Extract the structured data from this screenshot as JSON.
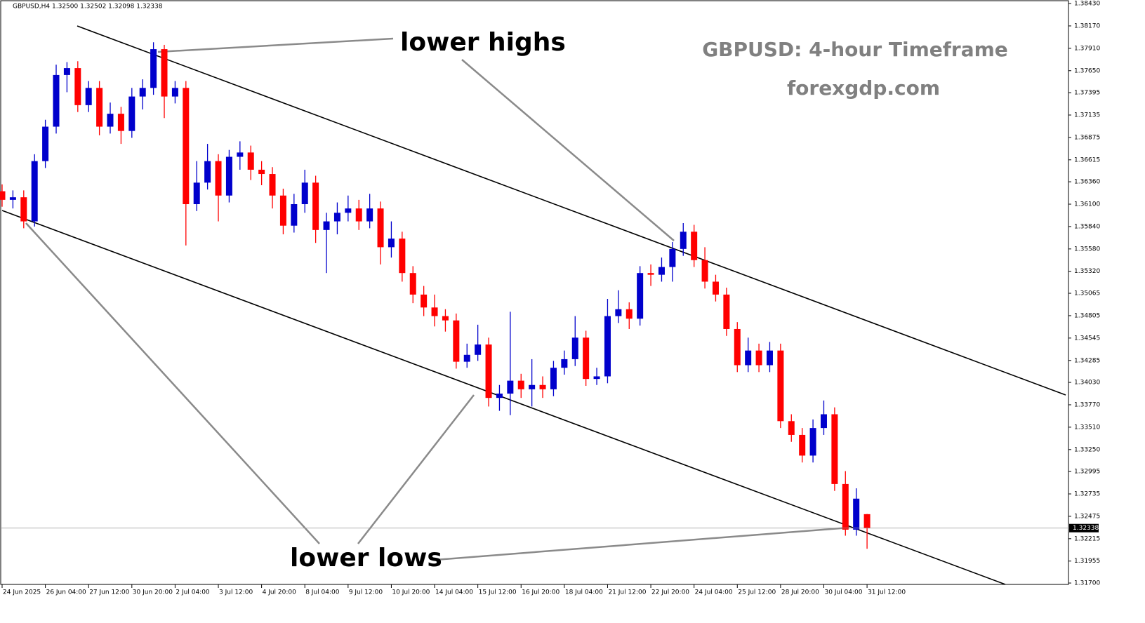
{
  "chart_data": {
    "type": "candlestick",
    "symbol_info": "GBPUSD,H4  1.32500 1.32502 1.32098 1.32338",
    "title": "GBPUSD: 4-hour Timeframe",
    "subtitle": "forexgdp.com",
    "annotations": [
      "lower highs",
      "lower lows"
    ],
    "up_color": "#0000cc",
    "down_color": "#ff0000",
    "x": [
      0,
      1,
      2,
      3,
      4,
      5,
      6,
      7,
      8,
      9,
      10,
      11,
      12,
      13,
      14,
      15,
      16,
      17,
      18,
      19,
      20,
      21,
      22,
      23,
      24,
      25,
      26,
      27,
      28,
      29,
      30,
      31,
      32,
      33,
      34,
      35,
      36,
      37,
      38,
      39,
      40,
      41,
      42,
      43,
      44,
      45,
      46,
      47,
      48,
      49,
      50,
      51,
      52,
      53,
      54,
      55,
      56,
      57,
      58,
      59,
      60,
      61,
      62,
      63,
      64,
      65,
      66,
      67,
      68,
      69,
      70,
      71,
      72,
      73,
      74,
      75,
      76,
      77,
      78,
      79,
      80
    ],
    "open": [
      1.3625,
      1.3615,
      1.3618,
      1.359,
      1.366,
      1.37,
      1.376,
      1.3768,
      1.3725,
      1.3745,
      1.37,
      1.3715,
      1.3695,
      1.3735,
      1.3745,
      1.379,
      1.3735,
      1.3745,
      1.361,
      1.3635,
      1.366,
      1.362,
      1.3665,
      1.367,
      1.365,
      1.3645,
      1.362,
      1.3585,
      1.361,
      1.3635,
      1.358,
      1.359,
      1.36,
      1.3605,
      1.359,
      1.3605,
      1.356,
      1.357,
      1.353,
      1.3505,
      1.349,
      1.348,
      1.3475,
      1.3427,
      1.3435,
      1.3447,
      1.3385,
      1.339,
      1.3405,
      1.3395,
      1.34,
      1.3395,
      1.342,
      1.343,
      1.3455,
      1.3407,
      1.341,
      1.348,
      1.3488,
      1.3477,
      1.353,
      1.3528,
      1.3537,
      1.3558,
      1.3578,
      1.3545,
      1.352,
      1.3505,
      1.3465,
      1.3423,
      1.344,
      1.3423,
      1.344,
      1.3358,
      1.3342,
      1.3318,
      1.335,
      1.3366,
      1.3285,
      1.3232,
      1.325
    ],
    "high": [
      1.3633,
      1.3626,
      1.3626,
      1.3668,
      1.3708,
      1.3772,
      1.3775,
      1.3776,
      1.3753,
      1.3753,
      1.3728,
      1.3723,
      1.3745,
      1.3755,
      1.3798,
      1.3795,
      1.3753,
      1.3753,
      1.366,
      1.368,
      1.3668,
      1.3673,
      1.3683,
      1.3678,
      1.366,
      1.3653,
      1.3628,
      1.3622,
      1.365,
      1.3643,
      1.36,
      1.3612,
      1.362,
      1.3615,
      1.3622,
      1.3613,
      1.359,
      1.3578,
      1.3538,
      1.3515,
      1.3505,
      1.3488,
      1.3483,
      1.3448,
      1.347,
      1.3455,
      1.34,
      1.3485,
      1.3413,
      1.343,
      1.341,
      1.3428,
      1.344,
      1.348,
      1.3463,
      1.342,
      1.35,
      1.351,
      1.3496,
      1.3538,
      1.354,
      1.3548,
      1.3566,
      1.3588,
      1.3586,
      1.356,
      1.3528,
      1.3513,
      1.3473,
      1.3455,
      1.3448,
      1.345,
      1.3448,
      1.3366,
      1.335,
      1.336,
      1.3382,
      1.3374,
      1.33,
      1.328,
      1.32502
    ],
    "low": [
      1.3607,
      1.3605,
      1.3582,
      1.3584,
      1.3652,
      1.3692,
      1.374,
      1.3717,
      1.3717,
      1.369,
      1.3692,
      1.368,
      1.3687,
      1.372,
      1.3737,
      1.371,
      1.3727,
      1.3562,
      1.3602,
      1.3627,
      1.359,
      1.3612,
      1.365,
      1.3638,
      1.3632,
      1.3605,
      1.3575,
      1.3577,
      1.36,
      1.3565,
      1.353,
      1.3575,
      1.359,
      1.358,
      1.3582,
      1.354,
      1.3548,
      1.352,
      1.3495,
      1.348,
      1.3468,
      1.3462,
      1.3419,
      1.342,
      1.3428,
      1.3375,
      1.337,
      1.3365,
      1.3385,
      1.3375,
      1.3385,
      1.3387,
      1.3412,
      1.3422,
      1.3399,
      1.34,
      1.3402,
      1.3472,
      1.3465,
      1.3469,
      1.3515,
      1.352,
      1.352,
      1.355,
      1.3537,
      1.3512,
      1.3497,
      1.3457,
      1.3415,
      1.3415,
      1.3415,
      1.3415,
      1.335,
      1.3334,
      1.331,
      1.331,
      1.3342,
      1.3277,
      1.3225,
      1.3225,
      1.32098
    ],
    "close": [
      1.3615,
      1.3618,
      1.359,
      1.366,
      1.37,
      1.376,
      1.3768,
      1.3725,
      1.3745,
      1.37,
      1.3715,
      1.3695,
      1.3735,
      1.3745,
      1.379,
      1.3735,
      1.3745,
      1.361,
      1.3635,
      1.366,
      1.362,
      1.3665,
      1.367,
      1.365,
      1.3645,
      1.362,
      1.3585,
      1.361,
      1.3635,
      1.358,
      1.359,
      1.36,
      1.3605,
      1.359,
      1.3605,
      1.356,
      1.357,
      1.353,
      1.3505,
      1.349,
      1.348,
      1.3475,
      1.3427,
      1.3435,
      1.3447,
      1.3385,
      1.339,
      1.3405,
      1.3395,
      1.34,
      1.3395,
      1.342,
      1.343,
      1.3455,
      1.3407,
      1.341,
      1.348,
      1.3488,
      1.3477,
      1.353,
      1.3528,
      1.3537,
      1.3558,
      1.3578,
      1.3545,
      1.352,
      1.3505,
      1.3465,
      1.3423,
      1.344,
      1.3423,
      1.344,
      1.3358,
      1.3342,
      1.3318,
      1.335,
      1.3366,
      1.3285,
      1.3232,
      1.3268,
      1.32338
    ],
    "xlim": [
      -0.2,
      98.3
    ],
    "xticks": [
      {
        "value": 0,
        "label": "24 Jun 2025"
      },
      {
        "value": 4,
        "label": "26 Jun 04:00"
      },
      {
        "value": 8,
        "label": "27 Jun 12:00"
      },
      {
        "value": 12,
        "label": "30 Jun 20:00"
      },
      {
        "value": 16,
        "label": "2 Jul 04:00"
      },
      {
        "value": 20,
        "label": "3 Jul 12:00"
      },
      {
        "value": 24,
        "label": "4 Jul 20:00"
      },
      {
        "value": 28,
        "label": "8 Jul 04:00"
      },
      {
        "value": 32,
        "label": "9 Jul 12:00"
      },
      {
        "value": 36,
        "label": "10 Jul 20:00"
      },
      {
        "value": 40,
        "label": "14 Jul 04:00"
      },
      {
        "value": 44,
        "label": "15 Jul 12:00"
      },
      {
        "value": 48,
        "label": "16 Jul 20:00"
      },
      {
        "value": 52,
        "label": "18 Jul 04:00"
      },
      {
        "value": 56,
        "label": "21 Jul 12:00"
      },
      {
        "value": 60,
        "label": "22 Jul 20:00"
      },
      {
        "value": 64,
        "label": "24 Jul 04:00"
      },
      {
        "value": 68,
        "label": "25 Jul 12:00"
      },
      {
        "value": 72,
        "label": "28 Jul 20:00"
      },
      {
        "value": 76,
        "label": "30 Jul 04:00"
      },
      {
        "value": 80,
        "label": "31 Jul 12:00"
      }
    ],
    "ylim": [
      1.31684,
      1.38471
    ],
    "yticks": [
      {
        "value": 1.3843,
        "label": "1.38430"
      },
      {
        "value": 1.3817,
        "label": "1.38170"
      },
      {
        "value": 1.3791,
        "label": "1.37910"
      },
      {
        "value": 1.3765,
        "label": "1.37650"
      },
      1.37395,
      1.37135,
      1.36875,
      1.36615,
      {
        "value": 1.3636,
        "label": "1.36360"
      },
      {
        "value": 1.361,
        "label": "1.36100"
      },
      {
        "value": 1.3584,
        "label": "1.35840"
      },
      {
        "value": 1.3558,
        "label": "1.35580"
      },
      {
        "value": 1.3532,
        "label": "1.35320"
      },
      1.35065,
      1.34805,
      1.34545,
      1.34285,
      {
        "value": 1.3403,
        "label": "1.34030"
      },
      {
        "value": 1.3377,
        "label": "1.33770"
      },
      {
        "value": 1.3351,
        "label": "1.33510"
      },
      {
        "value": 1.3325,
        "label": "1.33250"
      },
      1.32995,
      1.32735,
      1.32475,
      1.32215,
      1.31955,
      {
        "value": 1.317,
        "label": "1.31700"
      }
    ]
  }
}
